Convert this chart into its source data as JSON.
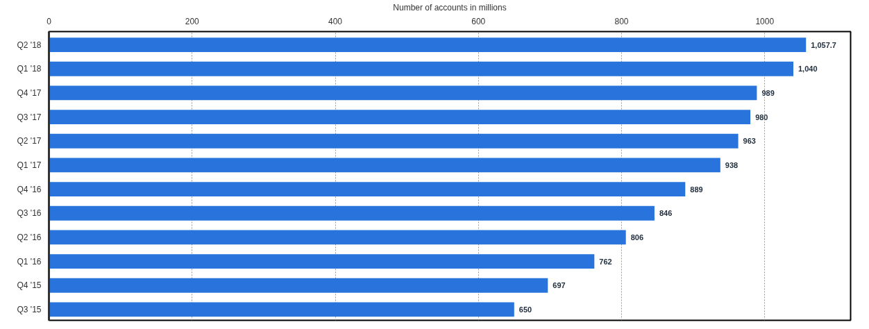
{
  "chart_data": {
    "type": "bar",
    "orientation": "horizontal",
    "xlabel": "Number of accounts in millions",
    "categories": [
      "Q2 '18",
      "Q1 '18",
      "Q4 '17",
      "Q3 '17",
      "Q2 '17",
      "Q1 '17",
      "Q4 '16",
      "Q3 '16",
      "Q2 '16",
      "Q1 '16",
      "Q4 '15",
      "Q3 '15"
    ],
    "values": [
      1057.7,
      1040,
      989,
      980,
      963,
      938,
      889,
      846,
      806,
      762,
      697,
      650
    ],
    "value_labels": [
      "1,057.7",
      "1,040",
      "989",
      "980",
      "963",
      "938",
      "889",
      "846",
      "806",
      "762",
      "697",
      "650"
    ],
    "color": "#2874dc",
    "xlim": [
      0,
      1120
    ],
    "xticks": [
      0,
      200,
      400,
      600,
      800,
      1000
    ],
    "grid": "x"
  }
}
